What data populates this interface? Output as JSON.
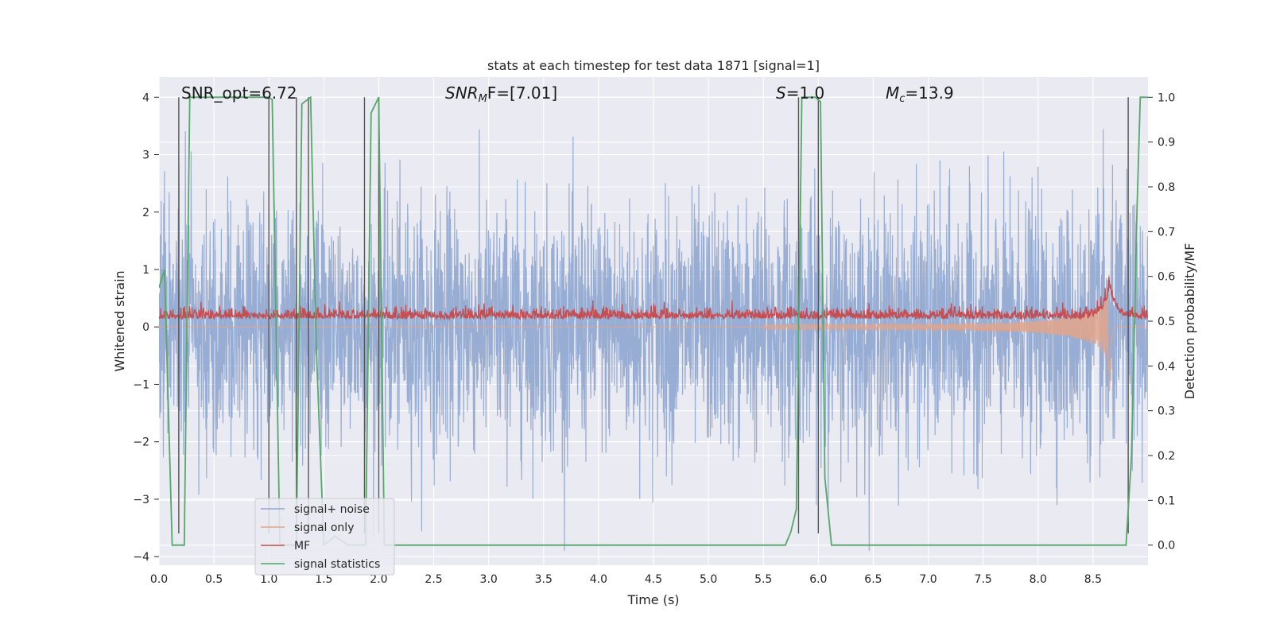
{
  "chart_data": {
    "type": "line",
    "title": "stats at each timestep for test data 1871 [signal=1]",
    "xlabel": "Time (s)",
    "ylabel": "Whitened strain",
    "ylabel_right": "Detection probability/MF",
    "xlim": [
      0,
      9
    ],
    "ylim": [
      -4.15,
      4.35
    ],
    "ylim_right": [
      -0.045,
      1.045
    ],
    "x_ticks": [
      "0.0",
      "0.5",
      "1.0",
      "1.5",
      "2.0",
      "2.5",
      "3.0",
      "3.5",
      "4.0",
      "4.5",
      "5.0",
      "5.5",
      "6.0",
      "6.5",
      "7.0",
      "7.5",
      "8.0",
      "8.5"
    ],
    "y_ticks": [
      "4",
      "3",
      "2",
      "1",
      "0",
      "−1",
      "−2",
      "−3",
      "−4"
    ],
    "y_ticks_right": [
      "1.0",
      "0.9",
      "0.8",
      "0.7",
      "0.6",
      "0.5",
      "0.4",
      "0.3",
      "0.2",
      "0.1",
      "0.0"
    ],
    "grid": true,
    "legend_position": "lower-left",
    "annotations": {
      "snr_opt": "SNR_opt=6.72",
      "snr_mf_base": "SNR",
      "snr_mf_sub": "M",
      "snr_mf_rest": "F=[7.01]",
      "s_italic": "S",
      "s_rest": "=1.0",
      "mc_base": "M",
      "mc_sub": "c",
      "mc_rest": "=13.9"
    },
    "series": [
      {
        "name": "signal+ noise",
        "color": "#8fa6cf",
        "axis": "left",
        "description": "noise amplitude about 0 with std ~1, peaks to ~±4"
      },
      {
        "name": "signal only",
        "color": "#e2a48a",
        "axis": "left",
        "chirp": {
          "start": 5.5,
          "merger": 8.65,
          "peak": 1.4
        }
      },
      {
        "name": "MF",
        "color": "#c44e52",
        "axis": "left",
        "baseline": 0.18,
        "peak_at": 8.65,
        "peak_value": 0.95
      },
      {
        "name": "signal statistics",
        "color": "#55a868",
        "axis": "right",
        "x": [
          0.0,
          0.05,
          0.12,
          0.18,
          0.23,
          0.28,
          0.33,
          1.0,
          1.03,
          1.1,
          1.25,
          1.3,
          1.38,
          1.43,
          1.5,
          1.6,
          1.72,
          1.88,
          1.93,
          2.0,
          2.05,
          2.12,
          2.2,
          2.4,
          2.5,
          5.7,
          5.75,
          5.8,
          5.85,
          5.97,
          6.02,
          6.06,
          6.12,
          8.8,
          8.85,
          8.9,
          8.93,
          9.0
        ],
        "y": [
          0.575,
          0.615,
          0.0,
          0.0,
          0.0,
          1.0,
          1.0,
          1.0,
          0.995,
          0.0,
          0.0,
          0.985,
          1.0,
          0.45,
          0.0,
          0.02,
          0.0,
          0.0,
          0.965,
          1.0,
          0.0,
          0.0,
          0.0,
          0.0,
          0.0,
          0.0,
          0.03,
          0.08,
          1.0,
          1.0,
          0.99,
          0.15,
          0.0,
          0.0,
          0.2,
          0.75,
          1.0,
          1.0
        ]
      }
    ],
    "vlines": [
      0.18,
      1.0,
      1.25,
      1.36,
      1.87,
      2.0,
      5.82,
      6.0,
      8.82
    ]
  }
}
